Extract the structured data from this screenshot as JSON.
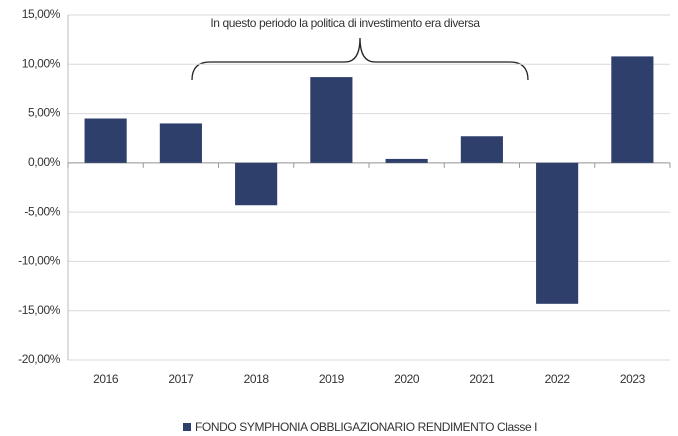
{
  "chart_data": {
    "type": "bar",
    "annotation": "In questo periodo la politica di investimento era diversa",
    "categories": [
      "2016",
      "2017",
      "2018",
      "2019",
      "2020",
      "2021",
      "2022",
      "2023"
    ],
    "series": [
      {
        "name": "FONDO SYMPHONIA OBBLIGAZIONARIO RENDIMENTO Classe I",
        "color": "#2e3f6b",
        "values": [
          4.5,
          4.0,
          -4.3,
          8.7,
          0.4,
          2.7,
          -14.3,
          10.8
        ]
      }
    ],
    "ylim": [
      -20,
      15
    ],
    "yticks": [
      {
        "value": -20,
        "label": "-20,00%"
      },
      {
        "value": -15,
        "label": "-15,00%"
      },
      {
        "value": -10,
        "label": "-10,00%"
      },
      {
        "value": -5,
        "label": "-5,00%"
      },
      {
        "value": 0,
        "label": "0,00%"
      },
      {
        "value": 5,
        "label": "5,00%"
      },
      {
        "value": 10,
        "label": "10,00%"
      },
      {
        "value": 15,
        "label": "15,00%"
      }
    ],
    "grid": true,
    "legend": "bottom"
  }
}
